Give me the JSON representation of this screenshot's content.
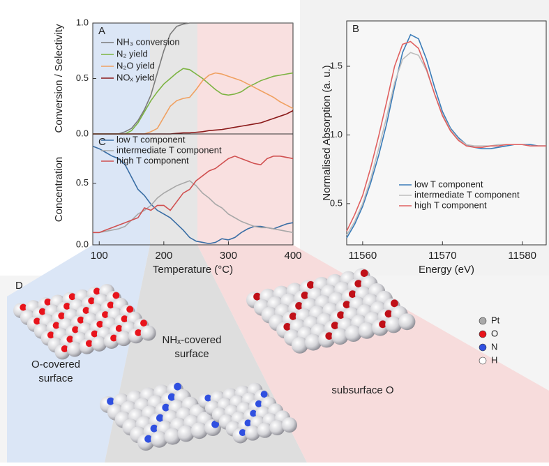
{
  "chart_data": [
    {
      "type": "line",
      "title": "A",
      "ylabel": "Conversion / Selectivity",
      "x": [
        90,
        100,
        110,
        120,
        130,
        140,
        150,
        160,
        170,
        180,
        190,
        200,
        210,
        220,
        230,
        240,
        250,
        260,
        270,
        280,
        290,
        300,
        310,
        320,
        330,
        340,
        350,
        360,
        370,
        380,
        390,
        400
      ],
      "xlim": [
        90,
        400
      ],
      "ylim": [
        0,
        1
      ],
      "yticks": [
        {
          "value": 0,
          "label": "0.0"
        },
        0.5,
        {
          "value": 1,
          "label": "1.0"
        }
      ],
      "legend": "upper left",
      "series": [
        {
          "name": "NH₃ conversion",
          "color": "#7a7a7a",
          "values": [
            0,
            0,
            0,
            0,
            0,
            0.02,
            0.05,
            0.12,
            0.22,
            0.35,
            0.55,
            0.75,
            0.9,
            0.97,
            0.99,
            1,
            1,
            1,
            1,
            1,
            1,
            1,
            1,
            1,
            1,
            1,
            1,
            1,
            1,
            1,
            1,
            1
          ]
        },
        {
          "name": "N₂ yield",
          "color": "#7cb342",
          "values": [
            0,
            0,
            0,
            0,
            0,
            0,
            0.03,
            0.1,
            0.2,
            0.3,
            0.38,
            0.45,
            0.5,
            0.55,
            0.59,
            0.58,
            0.54,
            0.5,
            0.45,
            0.4,
            0.36,
            0.35,
            0.36,
            0.38,
            0.42,
            0.45,
            0.48,
            0.5,
            0.52,
            0.53,
            0.54,
            0.55
          ]
        },
        {
          "name": "N₂O yield",
          "color": "#f0a060",
          "values": [
            0,
            0,
            0,
            0,
            0,
            0,
            0,
            0,
            0,
            0.02,
            0.05,
            0.15,
            0.25,
            0.3,
            0.32,
            0.33,
            0.4,
            0.48,
            0.53,
            0.55,
            0.54,
            0.52,
            0.5,
            0.48,
            0.45,
            0.42,
            0.39,
            0.36,
            0.33,
            0.29,
            0.26,
            0.23
          ]
        },
        {
          "name": "NOₓ yield",
          "color": "#8b1a1a",
          "values": [
            0,
            0,
            0,
            0,
            0,
            0,
            0,
            0,
            0,
            0,
            0,
            0,
            0,
            0.005,
            0.01,
            0.01,
            0.015,
            0.02,
            0.03,
            0.035,
            0.04,
            0.05,
            0.06,
            0.07,
            0.08,
            0.09,
            0.1,
            0.12,
            0.14,
            0.16,
            0.18,
            0.21
          ]
        }
      ]
    },
    {
      "type": "line",
      "title": "C",
      "ylabel": "Concentration",
      "xlabel": "Temperature (°C)",
      "x": [
        90,
        100,
        110,
        120,
        130,
        140,
        150,
        160,
        170,
        180,
        190,
        200,
        210,
        220,
        230,
        240,
        250,
        260,
        270,
        280,
        290,
        300,
        310,
        320,
        330,
        340,
        350,
        360,
        370,
        380,
        390,
        400
      ],
      "xlim": [
        90,
        400
      ],
      "ylim": [
        0,
        0.9
      ],
      "xticks": [
        100,
        200,
        300,
        400
      ],
      "yticks": [
        {
          "value": 0,
          "label": "0.0"
        },
        0.5
      ],
      "legend": "upper left",
      "series": [
        {
          "name": "low T component",
          "color": "#3a6ea5",
          "values": [
            0.8,
            0.78,
            0.75,
            0.72,
            0.7,
            0.65,
            0.55,
            0.45,
            0.4,
            0.33,
            0.28,
            0.25,
            0.22,
            0.17,
            0.12,
            0.06,
            0.03,
            0.02,
            0.01,
            0.02,
            0.05,
            0.04,
            0.06,
            0.1,
            0.13,
            0.15,
            0.15,
            0.14,
            0.13,
            0.15,
            0.17,
            0.18
          ]
        },
        {
          "name": "intermediate T component",
          "color": "#a8a8a8",
          "values": [
            0.1,
            0.1,
            0.11,
            0.12,
            0.13,
            0.15,
            0.2,
            0.25,
            0.28,
            0.32,
            0.38,
            0.42,
            0.45,
            0.48,
            0.5,
            0.52,
            0.48,
            0.42,
            0.38,
            0.33,
            0.3,
            0.25,
            0.22,
            0.19,
            0.17,
            0.15,
            0.14,
            0.14,
            0.13,
            0.12,
            0.11,
            0.1
          ]
        },
        {
          "name": "high T component",
          "color": "#d05050",
          "values": [
            0.1,
            0.1,
            0.12,
            0.14,
            0.16,
            0.18,
            0.2,
            0.22,
            0.3,
            0.28,
            0.32,
            0.32,
            0.28,
            0.35,
            0.42,
            0.45,
            0.52,
            0.56,
            0.6,
            0.62,
            0.66,
            0.7,
            0.72,
            0.7,
            0.68,
            0.66,
            0.65,
            0.7,
            0.72,
            0.72,
            0.71,
            0.7
          ]
        }
      ]
    },
    {
      "type": "line",
      "title": "B",
      "ylabel": "Normalised Absorption (a. u.)",
      "xlabel": "Energy (eV)",
      "x": [
        11558,
        11559,
        11560,
        11561,
        11562,
        11563,
        11564,
        11565,
        11566,
        11567,
        11568,
        11569,
        11570,
        11571,
        11572,
        11573,
        11574,
        11575,
        11576,
        11577,
        11578,
        11579,
        11580,
        11581,
        11582,
        11583
      ],
      "xlim": [
        11558,
        11583
      ],
      "ylim": [
        0.2,
        1.83
      ],
      "xticks": [
        11560,
        11570,
        11580
      ],
      "yticks": [
        0.5,
        {
          "value": 1,
          "label": "1.0"
        },
        1.5
      ],
      "legend": "lower center",
      "series": [
        {
          "name": "low T component",
          "color": "#3a7cb8",
          "values": [
            0.25,
            0.35,
            0.48,
            0.65,
            0.85,
            1.08,
            1.35,
            1.6,
            1.73,
            1.7,
            1.55,
            1.35,
            1.17,
            1.05,
            0.98,
            0.93,
            0.91,
            0.9,
            0.9,
            0.91,
            0.92,
            0.93,
            0.93,
            0.93,
            0.92,
            0.92
          ]
        },
        {
          "name": "intermediate T component",
          "color": "#bdbdbd",
          "values": [
            0.27,
            0.37,
            0.5,
            0.68,
            0.9,
            1.13,
            1.38,
            1.55,
            1.6,
            1.58,
            1.47,
            1.3,
            1.15,
            1.04,
            0.97,
            0.93,
            0.92,
            0.92,
            0.92,
            0.93,
            0.93,
            0.93,
            0.93,
            0.92,
            0.92,
            0.92
          ]
        },
        {
          "name": "high T component",
          "color": "#e06060",
          "values": [
            0.3,
            0.42,
            0.56,
            0.76,
            0.99,
            1.24,
            1.5,
            1.66,
            1.68,
            1.63,
            1.48,
            1.3,
            1.14,
            1.03,
            0.96,
            0.92,
            0.91,
            0.91,
            0.92,
            0.92,
            0.93,
            0.93,
            0.93,
            0.92,
            0.92,
            0.92
          ]
        }
      ]
    }
  ],
  "diagram": {
    "panel": "D",
    "labels": [
      "O-covered surface",
      "NHₓ-covered surface",
      "subsurface O"
    ],
    "legend": [
      {
        "name": "Pt",
        "color": "#a9a9a9"
      },
      {
        "name": "O",
        "color": "#e8141c"
      },
      {
        "name": "N",
        "color": "#3050e0"
      },
      {
        "name": "H",
        "color": "#ffffff"
      }
    ]
  }
}
